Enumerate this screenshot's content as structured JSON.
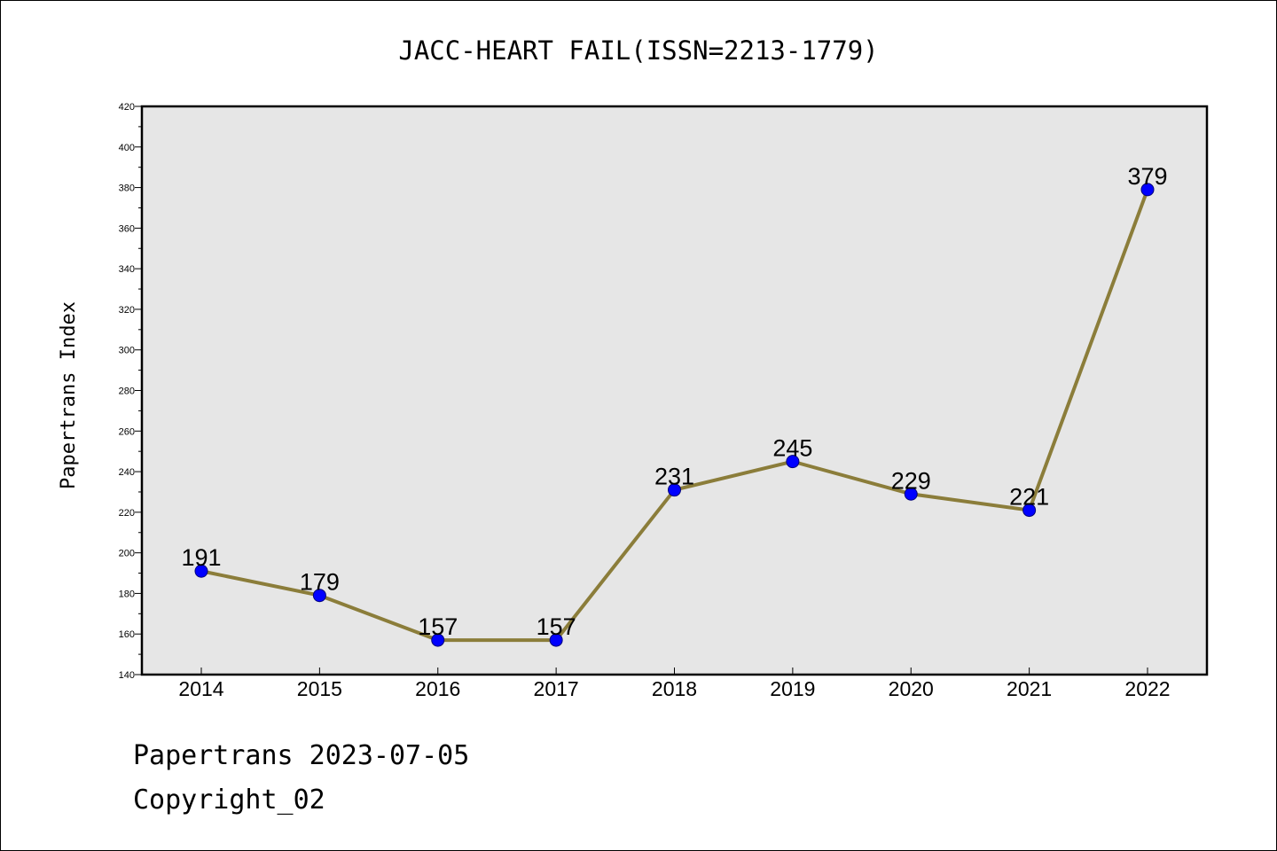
{
  "chart_data": {
    "type": "line",
    "title": "JACC-HEART FAIL(ISSN=2213-1779)",
    "xlabel": "",
    "ylabel": "Papertrans Index",
    "categories": [
      "2014",
      "2015",
      "2016",
      "2017",
      "2018",
      "2019",
      "2020",
      "2021",
      "2022"
    ],
    "series": [
      {
        "values": [
          191,
          179,
          157,
          157,
          231,
          245,
          229,
          221,
          379
        ]
      }
    ],
    "data_labels": [
      "191",
      "179",
      "157",
      "157",
      "231",
      "245",
      "229",
      "221",
      "379"
    ],
    "ylim": [
      140,
      420
    ],
    "yticks": [
      140,
      160,
      180,
      200,
      220,
      240,
      260,
      280,
      300,
      320,
      340,
      360,
      380,
      400,
      420
    ],
    "grid": false,
    "colors": {
      "line": "#8b7d3a",
      "marker": "#0000ff",
      "plot_background": "#e6e6e6"
    }
  },
  "footer": {
    "line1": "Papertrans 2023-07-05",
    "line2": "Copyright_02"
  }
}
